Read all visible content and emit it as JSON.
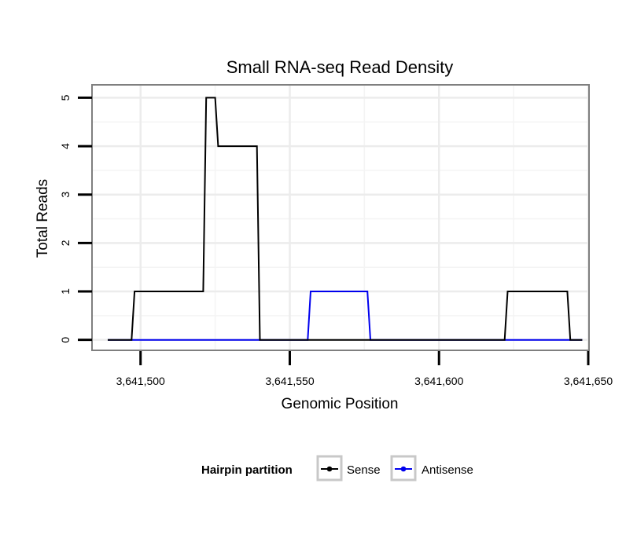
{
  "chart_data": {
    "type": "line",
    "title": "Small RNA-seq Read Density",
    "xlabel": "Genomic Position",
    "ylabel": "Total Reads",
    "xlim": [
      3641484,
      3641650
    ],
    "ylim": [
      -0.2,
      5.25
    ],
    "x_ticks": [
      3641500,
      3641550,
      3641600,
      3641650
    ],
    "x_tick_labels": [
      "3,641,500",
      "3,641,550",
      "3,641,600",
      "3,641,650"
    ],
    "y_ticks": [
      0,
      1,
      2,
      3,
      4,
      5
    ],
    "y_tick_labels": [
      "0",
      "1",
      "2",
      "3",
      "4",
      "5"
    ],
    "grid": true,
    "legend": {
      "title": "Hairpin partition",
      "position": "bottom",
      "entries": [
        "Sense",
        "Antisense"
      ]
    },
    "series": [
      {
        "name": "Sense",
        "color": "#000000",
        "x": [
          3641489,
          3641497,
          3641498,
          3641521,
          3641522,
          3641525,
          3641526,
          3641539,
          3641540,
          3641622,
          3641623,
          3641643,
          3641644,
          3641648
        ],
        "values": [
          0,
          0,
          1,
          1,
          5,
          5,
          4,
          4,
          0,
          0,
          1,
          1,
          0,
          0
        ]
      },
      {
        "name": "Antisense",
        "color": "#0000ee",
        "x": [
          3641489,
          3641556,
          3641557,
          3641576,
          3641577,
          3641648
        ],
        "values": [
          0,
          0,
          1,
          1,
          0,
          0
        ]
      }
    ]
  }
}
